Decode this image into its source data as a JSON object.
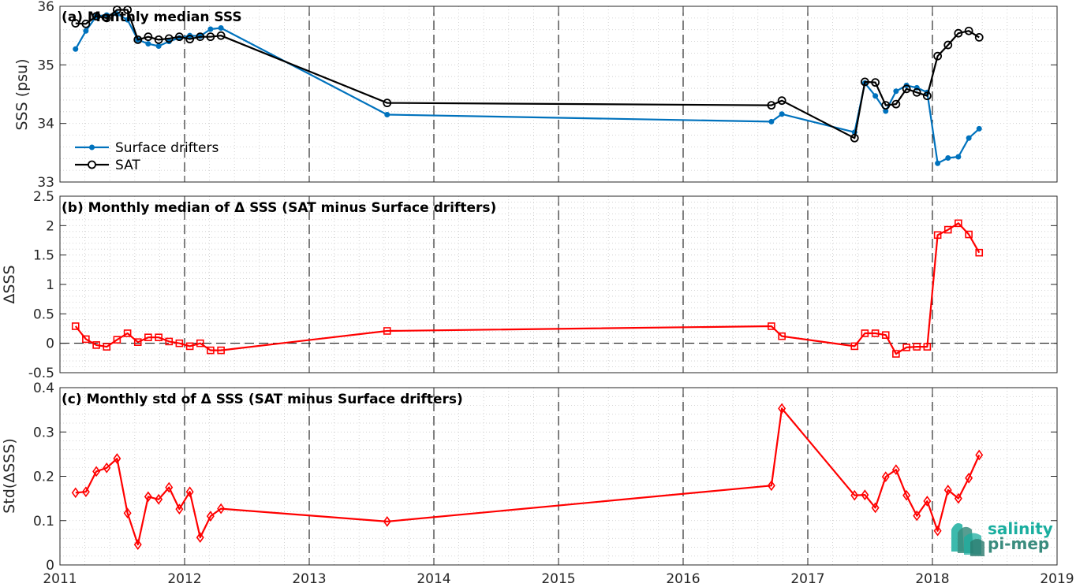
{
  "chart_data": [
    {
      "type": "line",
      "title": "(a) Monthly median SSS",
      "xlabel": "",
      "ylabel": "SSS (psu)",
      "xlim": [
        2011,
        2019
      ],
      "ylim": [
        33,
        36
      ],
      "yticks": [
        "33",
        "34",
        "35",
        "36"
      ],
      "grid": true,
      "legend_position": "bottom-left",
      "series": [
        {
          "name": "Surface drifters",
          "color": "#0072BD",
          "marker": "filled-dot",
          "x": [
            2011.125,
            2011.208,
            2011.292,
            2011.375,
            2011.458,
            2011.542,
            2011.625,
            2011.708,
            2011.792,
            2011.875,
            2011.958,
            2012.042,
            2012.125,
            2012.208,
            2012.292,
            2013.625,
            2016.708,
            2016.792,
            2017.375,
            2017.458,
            2017.542,
            2017.625,
            2017.708,
            2017.792,
            2017.875,
            2017.958,
            2018.042,
            2018.125,
            2018.208,
            2018.292,
            2018.375
          ],
          "y": [
            35.27,
            35.58,
            35.83,
            35.85,
            35.87,
            35.77,
            35.43,
            35.36,
            35.32,
            35.4,
            35.46,
            35.5,
            35.49,
            35.61,
            35.63,
            34.15,
            34.03,
            34.16,
            33.85,
            34.69,
            34.47,
            34.21,
            34.55,
            34.65,
            34.61,
            34.53,
            33.32,
            33.41,
            33.43,
            33.75,
            33.91
          ]
        },
        {
          "name": "SAT",
          "color": "#000000",
          "marker": "open-circle",
          "x": [
            2011.125,
            2011.208,
            2011.292,
            2011.375,
            2011.458,
            2011.542,
            2011.625,
            2011.708,
            2011.792,
            2011.875,
            2011.958,
            2012.042,
            2012.125,
            2012.208,
            2012.292,
            2013.625,
            2016.708,
            2016.792,
            2017.375,
            2017.458,
            2017.542,
            2017.625,
            2017.708,
            2017.792,
            2017.875,
            2017.958,
            2018.042,
            2018.125,
            2018.208,
            2018.292,
            2018.375
          ],
          "y": [
            35.71,
            35.7,
            35.83,
            35.8,
            35.94,
            35.94,
            35.43,
            35.48,
            35.43,
            35.45,
            35.48,
            35.44,
            35.48,
            35.48,
            35.5,
            34.35,
            34.31,
            34.39,
            33.75,
            34.71,
            34.7,
            34.31,
            34.33,
            34.59,
            34.53,
            34.47,
            35.15,
            35.34,
            35.54,
            35.58,
            35.47
          ]
        }
      ]
    },
    {
      "type": "line",
      "title": "(b) Monthly median of Δ SSS (SAT minus Surface drifters)",
      "xlabel": "",
      "ylabel": "ΔSSS",
      "xlim": [
        2011,
        2019
      ],
      "ylim": [
        -0.5,
        2.5
      ],
      "yticks": [
        "-0.5",
        "0",
        "0.5",
        "1",
        "1.5",
        "2",
        "2.5"
      ],
      "zero_line": true,
      "grid": true,
      "series": [
        {
          "color": "#FF0000",
          "marker": "open-square",
          "x": [
            2011.125,
            2011.208,
            2011.292,
            2011.375,
            2011.458,
            2011.542,
            2011.625,
            2011.708,
            2011.792,
            2011.875,
            2011.958,
            2012.042,
            2012.125,
            2012.208,
            2012.292,
            2013.625,
            2016.708,
            2016.792,
            2017.375,
            2017.458,
            2017.542,
            2017.625,
            2017.708,
            2017.792,
            2017.875,
            2017.958,
            2018.042,
            2018.125,
            2018.208,
            2018.292,
            2018.375
          ],
          "y": [
            0.29,
            0.07,
            -0.03,
            -0.06,
            0.06,
            0.17,
            0.02,
            0.1,
            0.1,
            0.03,
            0.0,
            -0.05,
            0.0,
            -0.12,
            -0.12,
            0.21,
            0.29,
            0.12,
            -0.05,
            0.17,
            0.17,
            0.14,
            -0.18,
            -0.07,
            -0.06,
            -0.06,
            1.84,
            1.93,
            2.04,
            1.85,
            1.54
          ]
        }
      ]
    },
    {
      "type": "line",
      "title": "(c) Monthly std of Δ SSS (SAT minus Surface drifters)",
      "xlabel": "",
      "ylabel": "Std(ΔSSS)",
      "xlim": [
        2011,
        2019
      ],
      "ylim": [
        0,
        0.4
      ],
      "yticks": [
        "0",
        "0.1",
        "0.2",
        "0.3",
        "0.4"
      ],
      "xticks": [
        "2011",
        "2012",
        "2013",
        "2014",
        "2015",
        "2016",
        "2017",
        "2018",
        "2019"
      ],
      "grid": true,
      "series": [
        {
          "color": "#FF0000",
          "marker": "open-diamond",
          "x": [
            2011.125,
            2011.208,
            2011.292,
            2011.375,
            2011.458,
            2011.542,
            2011.625,
            2011.708,
            2011.792,
            2011.875,
            2011.958,
            2012.042,
            2012.125,
            2012.208,
            2012.292,
            2013.625,
            2016.708,
            2016.792,
            2017.375,
            2017.458,
            2017.542,
            2017.625,
            2017.708,
            2017.792,
            2017.875,
            2017.958,
            2018.042,
            2018.125,
            2018.208,
            2018.292,
            2018.375
          ],
          "y": [
            0.163,
            0.165,
            0.211,
            0.219,
            0.24,
            0.117,
            0.046,
            0.154,
            0.148,
            0.175,
            0.126,
            0.165,
            0.062,
            0.11,
            0.127,
            0.098,
            0.179,
            0.353,
            0.157,
            0.158,
            0.129,
            0.199,
            0.215,
            0.157,
            0.111,
            0.144,
            0.077,
            0.169,
            0.15,
            0.196,
            0.248
          ]
        }
      ]
    }
  ],
  "logo": {
    "line1": "salinity",
    "line2": "pi-mep",
    "color_primary": "#1AAE9F",
    "color_secondary": "#3A8C7E"
  }
}
